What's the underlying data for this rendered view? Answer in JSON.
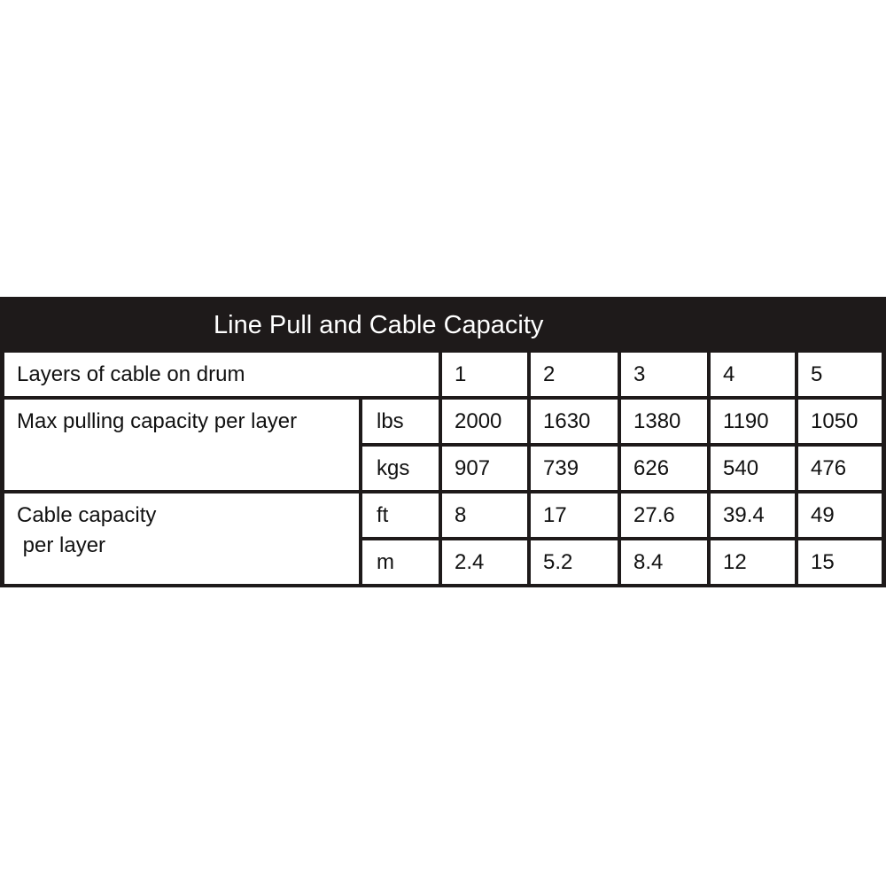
{
  "title": "Line Pull and Cable Capacity",
  "table": {
    "header": {
      "label": "Layers of cable on drum",
      "layers": [
        "1",
        "2",
        "3",
        "4",
        "5"
      ]
    },
    "groups": [
      {
        "label": "Max pulling capacity per layer",
        "rows": [
          {
            "unit": "lbs",
            "values": [
              "2000",
              "1630",
              "1380",
              "1190",
              "1050"
            ]
          },
          {
            "unit": "kgs",
            "values": [
              "907",
              "739",
              "626",
              "540",
              "476"
            ]
          }
        ]
      },
      {
        "label": "Cable capacity\n per layer",
        "rows": [
          {
            "unit": "ft",
            "values": [
              "8",
              "17",
              "27.6",
              "39.4",
              "49"
            ]
          },
          {
            "unit": "m",
            "values": [
              "2.4",
              "5.2",
              "8.4",
              "12",
              "15"
            ]
          }
        ]
      }
    ]
  },
  "colors": {
    "background": "#1e1a1a",
    "cell": "#ffffff",
    "title_text": "#ffffff"
  }
}
